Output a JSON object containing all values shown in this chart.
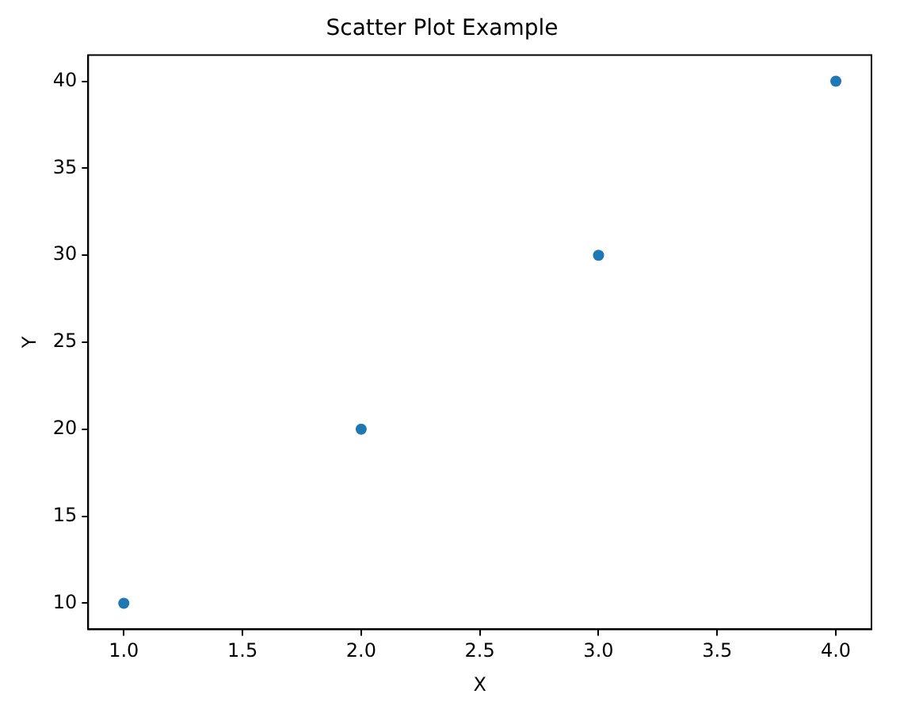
{
  "chart_data": {
    "type": "scatter",
    "title": "Scatter Plot Example",
    "xlabel": "X",
    "ylabel": "Y",
    "x": [
      1,
      2,
      3,
      4
    ],
    "series": [
      {
        "color": "#1f77b4",
        "values": [
          10,
          20,
          30,
          40
        ]
      }
    ],
    "xlim": [
      0.85,
      4.15
    ],
    "xticks": [
      {
        "value": 1,
        "label": "1.0"
      },
      {
        "value": 1.5,
        "label": "1.5"
      },
      {
        "value": 2,
        "label": "2.0"
      },
      {
        "value": 2.5,
        "label": "2.5"
      },
      {
        "value": 3,
        "label": "3.0"
      },
      {
        "value": 3.5,
        "label": "3.5"
      },
      {
        "value": 4,
        "label": "4.0"
      }
    ],
    "ylim": [
      8.5,
      41.5
    ],
    "yticks": [
      10,
      15,
      20,
      25,
      30,
      35,
      40
    ],
    "grid": false,
    "legend": false,
    "marker": "circle"
  }
}
